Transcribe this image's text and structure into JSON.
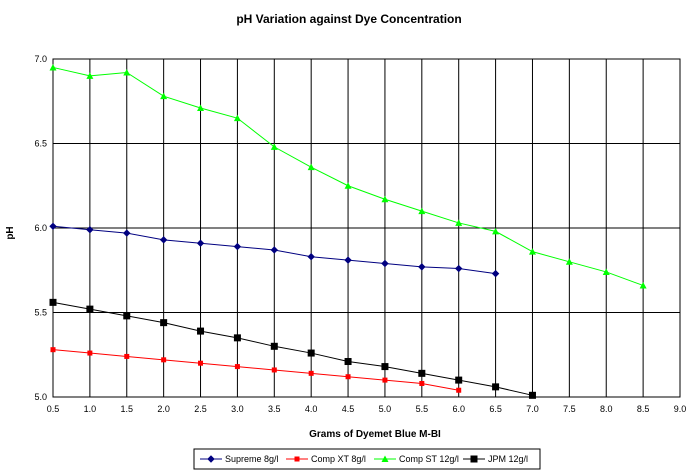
{
  "chart_data": {
    "type": "line",
    "title": "pH Variation against Dye Concentration",
    "xlabel": "Grams of Dyemet Blue M-BI",
    "ylabel": "pH",
    "xlim": [
      0.5,
      9.0
    ],
    "ylim": [
      5.0,
      7.0
    ],
    "x_ticks": [
      "0.5",
      "1.0",
      "1.5",
      "2.0",
      "2.5",
      "3.0",
      "3.5",
      "4.0",
      "4.5",
      "5.0",
      "5.5",
      "6.0",
      "6.5",
      "7.0",
      "7.5",
      "8.0",
      "8.5",
      "9.0"
    ],
    "y_ticks": [
      "5.0",
      "5.5",
      "6.0",
      "6.5",
      "7.0"
    ],
    "grid": true,
    "legend_position": "bottom",
    "series": [
      {
        "name": "Supreme 8g/l",
        "color": "#000080",
        "marker": "diamond",
        "x": [
          0.5,
          1.0,
          1.5,
          2.0,
          2.5,
          3.0,
          3.5,
          4.0,
          4.5,
          5.0,
          5.5,
          6.0,
          6.5
        ],
        "y": [
          6.01,
          5.99,
          5.97,
          5.93,
          5.91,
          5.89,
          5.87,
          5.83,
          5.81,
          5.79,
          5.77,
          5.76,
          5.73
        ]
      },
      {
        "name": "Comp XT 8g/l",
        "color": "#ff0000",
        "marker": "square",
        "x": [
          0.5,
          1.0,
          1.5,
          2.0,
          2.5,
          3.0,
          3.5,
          4.0,
          4.5,
          5.0,
          5.5,
          6.0
        ],
        "y": [
          5.28,
          5.26,
          5.24,
          5.22,
          5.2,
          5.18,
          5.16,
          5.14,
          5.12,
          5.1,
          5.08,
          5.04
        ]
      },
      {
        "name": "Comp ST 12g/l",
        "color": "#00ff00",
        "marker": "triangle",
        "x": [
          0.5,
          1.0,
          1.5,
          2.0,
          2.5,
          3.0,
          3.5,
          4.0,
          4.5,
          5.0,
          5.5,
          6.0,
          6.5,
          7.0,
          7.5,
          8.0,
          8.5
        ],
        "y": [
          6.95,
          6.9,
          6.92,
          6.78,
          6.71,
          6.65,
          6.48,
          6.36,
          6.25,
          6.17,
          6.1,
          6.03,
          5.98,
          5.86,
          5.8,
          5.74,
          5.66
        ]
      },
      {
        "name": "JPM 12g/l",
        "color": "#000000",
        "marker": "square-big",
        "x": [
          0.5,
          1.0,
          1.5,
          2.0,
          2.5,
          3.0,
          3.5,
          4.0,
          4.5,
          5.0,
          5.5,
          6.0,
          6.5,
          7.0
        ],
        "y": [
          5.56,
          5.52,
          5.48,
          5.44,
          5.39,
          5.35,
          5.3,
          5.26,
          5.21,
          5.18,
          5.14,
          5.1,
          5.06,
          5.01
        ]
      }
    ]
  }
}
